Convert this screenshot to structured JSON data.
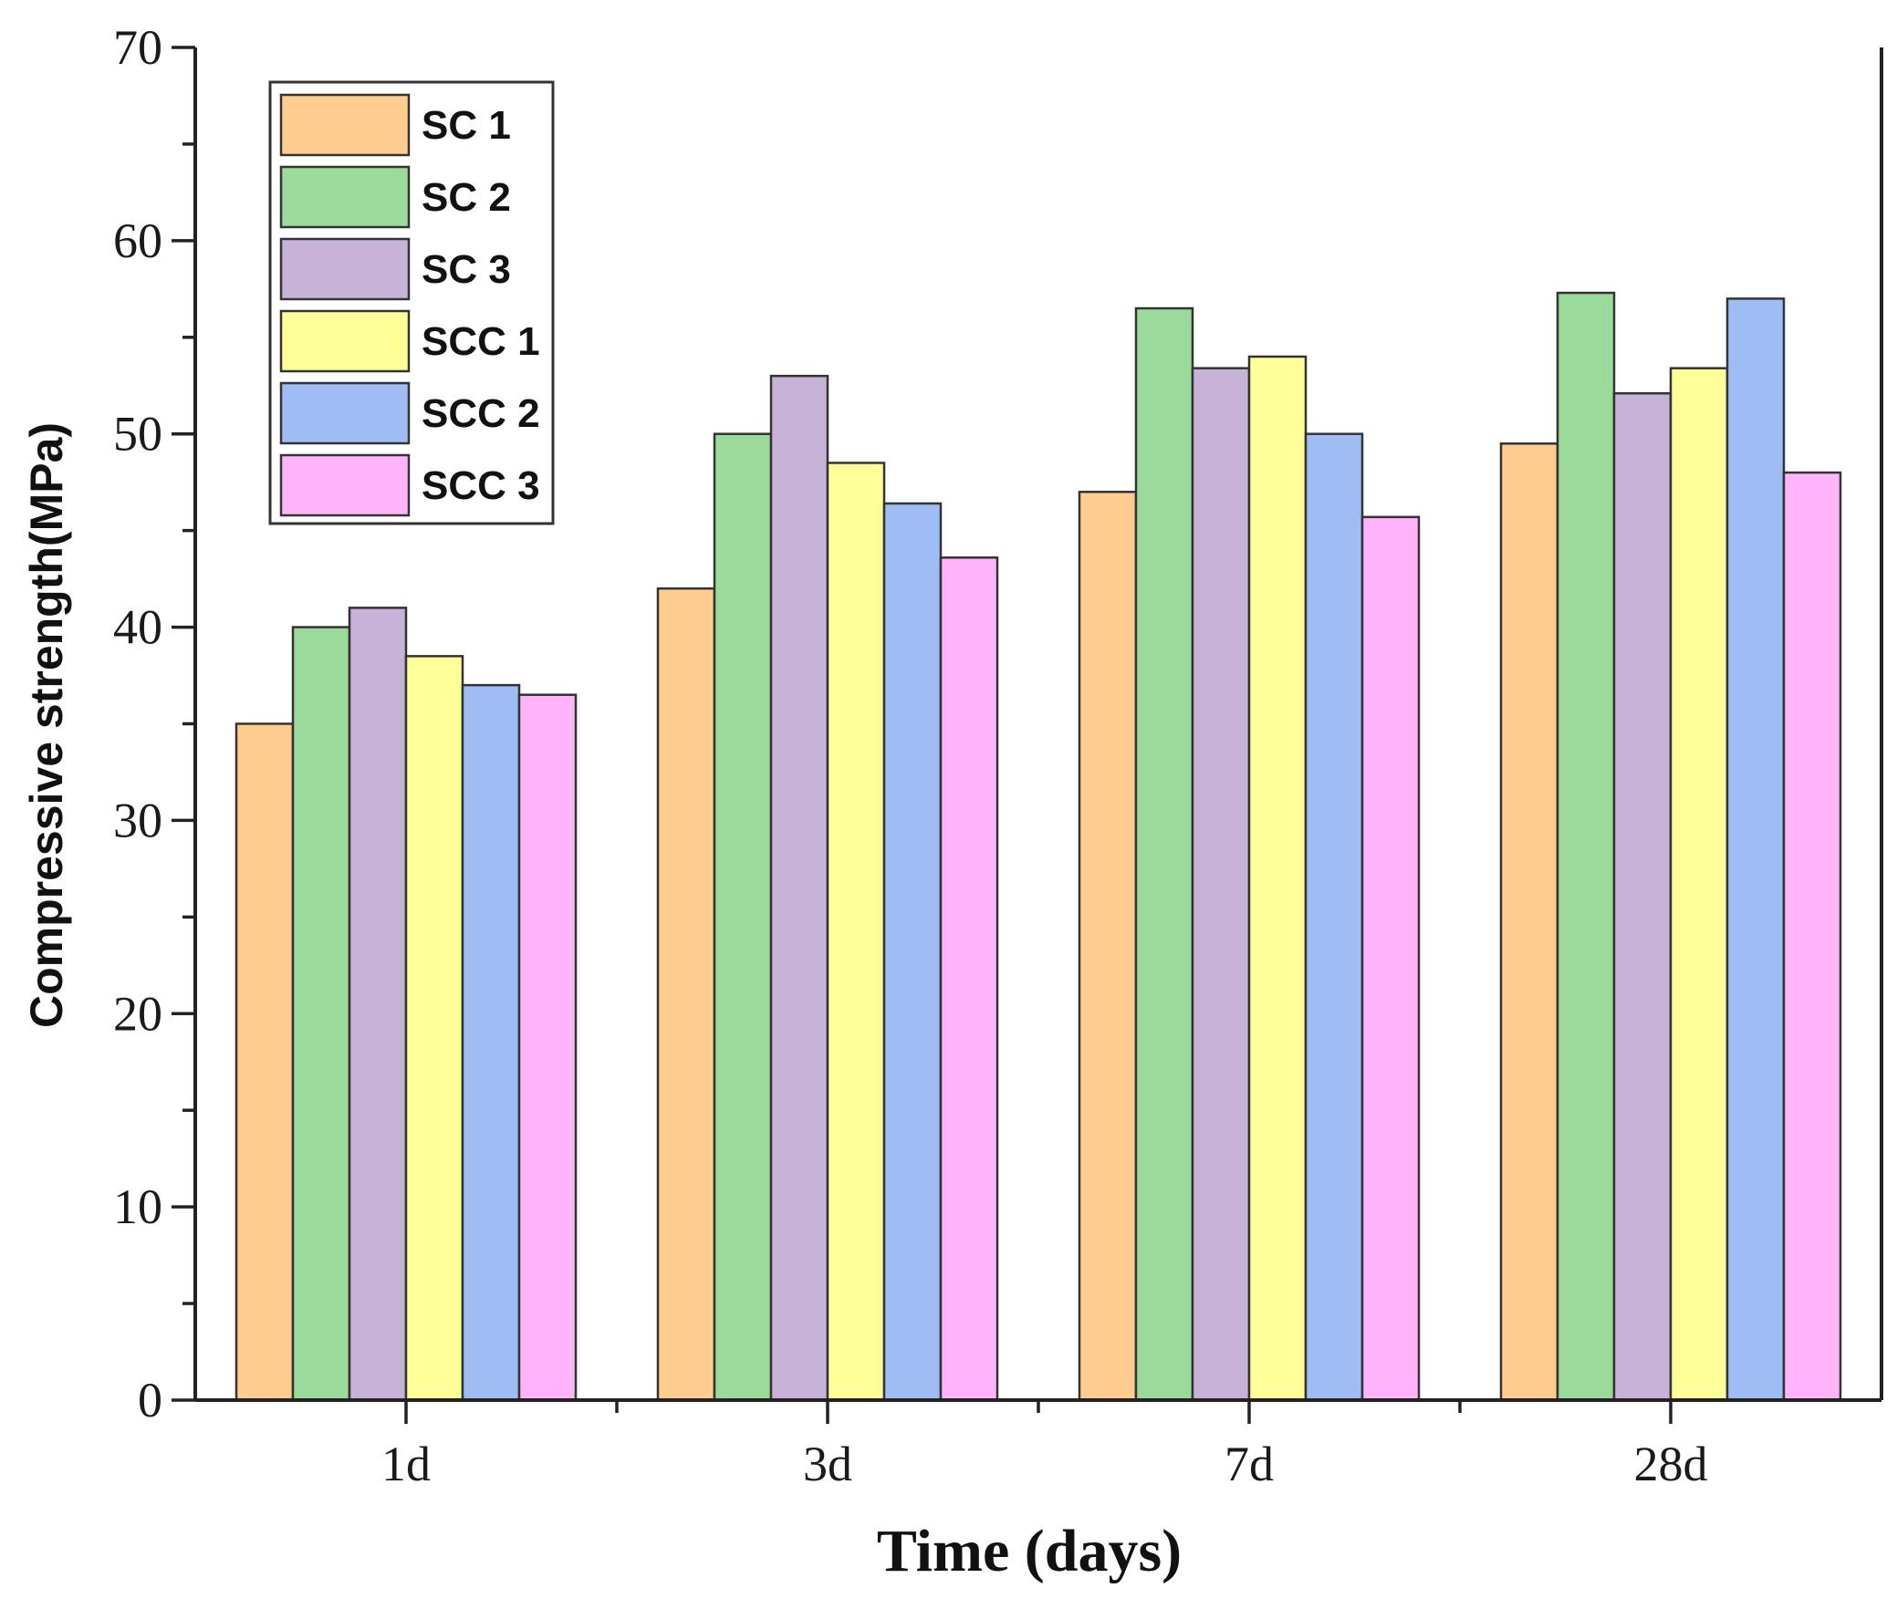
{
  "chart_data": {
    "type": "bar",
    "title": "",
    "xlabel": "Time (days)",
    "ylabel": "Compressive strength(MPa)",
    "categories": [
      "1d",
      "3d",
      "7d",
      "28d"
    ],
    "ylim": [
      0,
      70
    ],
    "yticks": [
      "0",
      "10",
      "20",
      "30",
      "40",
      "50",
      "60",
      "70"
    ],
    "grid": false,
    "legend_position": "top-left",
    "series": [
      {
        "name": "SC 1",
        "color": "#FFCC90",
        "values": [
          35.0,
          42.0,
          47.0,
          49.5
        ]
      },
      {
        "name": "SC 2",
        "color": "#9BDA9B",
        "values": [
          40.0,
          50.0,
          56.5,
          57.3
        ]
      },
      {
        "name": "SC 3",
        "color": "#C8B3D8",
        "values": [
          41.0,
          53.0,
          53.4,
          52.1
        ]
      },
      {
        "name": "SCC 1",
        "color": "#FFFF99",
        "values": [
          38.5,
          48.5,
          54.0,
          53.4
        ]
      },
      {
        "name": "SCC 2",
        "color": "#9FBCF5",
        "values": [
          37.0,
          46.4,
          50.0,
          57.0
        ]
      },
      {
        "name": "SCC 3",
        "color": "#FFB3F8",
        "values": [
          36.5,
          43.6,
          45.7,
          48.0
        ]
      }
    ]
  }
}
